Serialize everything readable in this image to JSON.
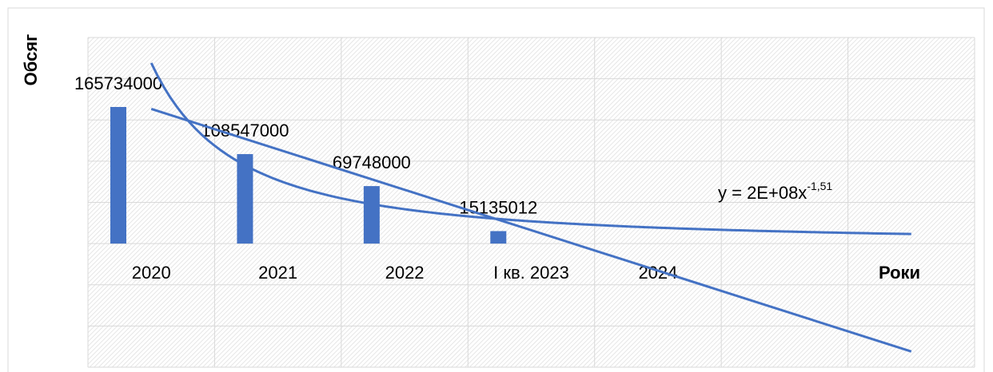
{
  "chart_data": {
    "type": "bar",
    "categories": [
      "2020",
      "2021",
      "2022",
      "І кв. 2023",
      "2024",
      null,
      null
    ],
    "values": [
      165734000,
      108547000,
      69748000,
      15135012,
      null,
      null,
      null
    ],
    "color": "#4472c4",
    "ylim": [
      -150000000,
      250000000
    ],
    "yticks": [
      -150000000,
      -100000000,
      -50000000,
      0,
      50000000,
      100000000,
      150000000,
      200000000,
      250000000
    ],
    "grid": true,
    "x_axis_label": "Роки",
    "y_axis_label": "Обсяг",
    "trendlines": [
      {
        "type": "power",
        "color": "#4472c4"
      },
      {
        "type": "linear",
        "color": "#4472c4"
      }
    ],
    "trendline_label": {
      "base": "y = 2E+08x",
      "exponent": "-1,51"
    }
  }
}
